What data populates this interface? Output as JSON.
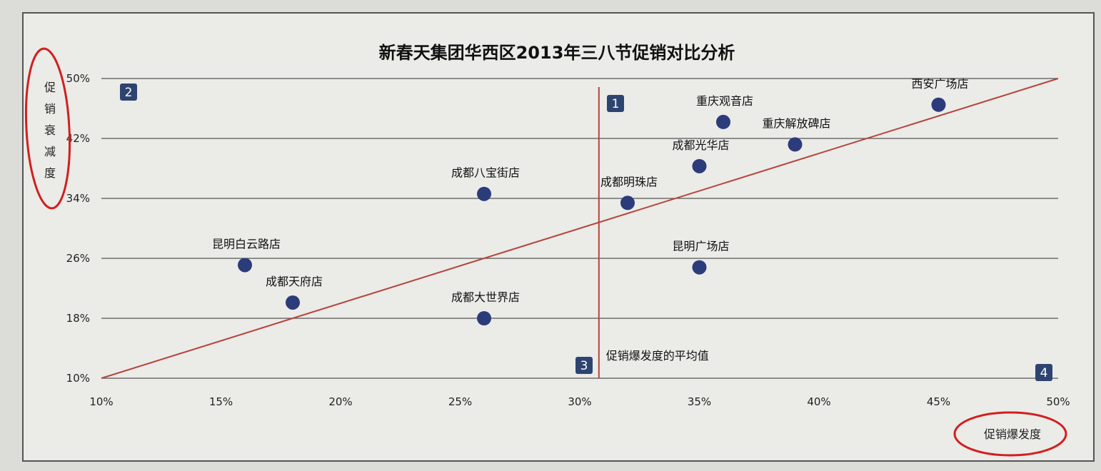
{
  "chart_data": {
    "type": "scatter",
    "title": "新春天集团华西区2013年三八节促销对比分析",
    "xlabel": "促销爆发度",
    "ylabel": "促销衰减度",
    "xlim": [
      10,
      50
    ],
    "ylim": [
      10,
      50
    ],
    "x_ticks": [
      "10%",
      "15%",
      "20%",
      "25%",
      "30%",
      "35%",
      "40%",
      "45%",
      "50%"
    ],
    "y_ticks": [
      "10%",
      "18%",
      "26%",
      "34%",
      "42%",
      "50%"
    ],
    "y_tick_values": [
      10,
      18,
      26,
      34,
      42,
      50
    ],
    "grid": true,
    "points": [
      {
        "label": "西安广场店",
        "x": 45,
        "y": 46.5
      },
      {
        "label": "重庆观音店",
        "x": 36,
        "y": 44.2
      },
      {
        "label": "重庆解放碑店",
        "x": 39,
        "y": 41.2
      },
      {
        "label": "成都光华店",
        "x": 35,
        "y": 38.3
      },
      {
        "label": "成都八宝街店",
        "x": 26,
        "y": 34.6
      },
      {
        "label": "成都明珠店",
        "x": 32,
        "y": 33.4
      },
      {
        "label": "昆明白云路店",
        "x": 16,
        "y": 25.1
      },
      {
        "label": "昆明广场店",
        "x": 35,
        "y": 24.8
      },
      {
        "label": "成都天府店",
        "x": 18,
        "y": 20.1
      },
      {
        "label": "成都大世界店",
        "x": 26,
        "y": 18.0
      }
    ],
    "average_line": {
      "x": 30.8,
      "label": "促销爆发度的平均值"
    },
    "diagonal": {
      "from": [
        10,
        10
      ],
      "to": [
        50,
        50
      ]
    },
    "quadrants": [
      "1",
      "2",
      "3",
      "4"
    ],
    "colors": {
      "point": "#2c3b7a",
      "reference_line": "#b5443a",
      "grid": "#555555",
      "quadrant_badge": "#2d4470",
      "annotation_circle": "#d11f1f"
    }
  }
}
